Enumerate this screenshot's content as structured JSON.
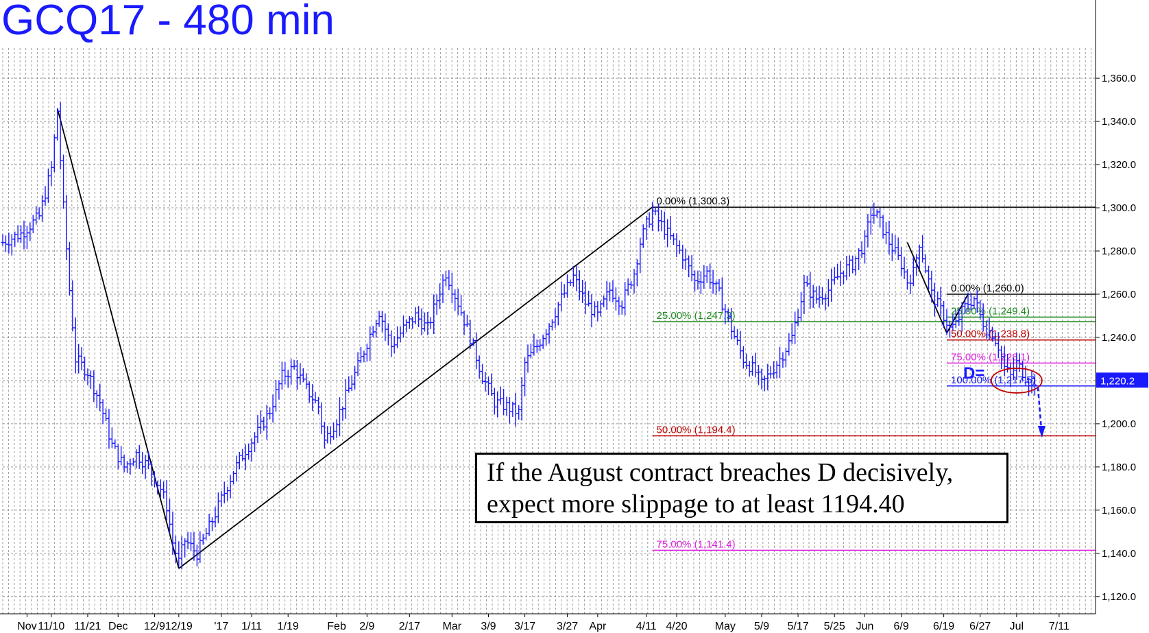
{
  "title": "GCQ17 - 480 min",
  "annotation": {
    "line1": "If the August contract breaches D decisively,",
    "line2": "expect more slippage to at least 1194.40"
  },
  "d_label": "D=",
  "colors": {
    "price": "#1a1aff",
    "title": "#1a1aff",
    "grid": "#9a9a9a",
    "trendline": "#000000",
    "fib_25": "#1f8a1f",
    "fib_50": "#c00000",
    "fib_75": "#e020e0",
    "fib_100": "#1a1aff",
    "circle": "#c00000",
    "last_price_bg": "#1a1aff"
  },
  "chart_data": {
    "type": "ohlc",
    "ylim": [
      1112,
      1374
    ],
    "y_ticks": [
      "1,120.0",
      "1,140.0",
      "1,160.0",
      "1,180.0",
      "1,200.0",
      "1,220.0",
      "1,240.0",
      "1,260.0",
      "1,280.0",
      "1,300.0",
      "1,320.0",
      "1,340.0",
      "1,360.0"
    ],
    "y_tick_values": [
      1120,
      1140,
      1160,
      1180,
      1200,
      1220,
      1240,
      1260,
      1280,
      1300,
      1320,
      1340,
      1360
    ],
    "x_ticks": [
      "Nov",
      "11/10",
      "11/21",
      "Dec",
      "12/9",
      "12/19",
      "'17",
      "1/11",
      "1/19",
      "Feb",
      "2/9",
      "2/17",
      "Mar",
      "3/9",
      "3/17",
      "3/27",
      "Apr",
      "4/11",
      "4/20",
      "May",
      "5/9",
      "5/17",
      "5/25",
      "Jun",
      "6/9",
      "6/19",
      "6/27",
      "Jul",
      "7/11"
    ],
    "x_tick_index": [
      4,
      8,
      14,
      19,
      25,
      29,
      36,
      41,
      47,
      55,
      60,
      67,
      74,
      80,
      86,
      93,
      98,
      106,
      111,
      119,
      125,
      131,
      137,
      142,
      148,
      155,
      161,
      167,
      174
    ],
    "x_range": [
      0,
      180
    ],
    "last_price": "1,220.2",
    "last_price_value": 1220.2,
    "price_path": [
      [
        0,
        1284
      ],
      [
        3,
        1288
      ],
      [
        6,
        1296
      ],
      [
        8,
        1318
      ],
      [
        9,
        1345
      ],
      [
        10,
        1300
      ],
      [
        11,
        1262
      ],
      [
        12,
        1230
      ],
      [
        14,
        1224
      ],
      [
        16,
        1210
      ],
      [
        18,
        1190
      ],
      [
        20,
        1180
      ],
      [
        22,
        1186
      ],
      [
        24,
        1180
      ],
      [
        26,
        1170
      ],
      [
        27,
        1162
      ],
      [
        28,
        1145
      ],
      [
        29,
        1136
      ],
      [
        30,
        1146
      ],
      [
        32,
        1140
      ],
      [
        34,
        1152
      ],
      [
        36,
        1165
      ],
      [
        38,
        1178
      ],
      [
        40,
        1188
      ],
      [
        42,
        1196
      ],
      [
        44,
        1206
      ],
      [
        46,
        1222
      ],
      [
        48,
        1226
      ],
      [
        50,
        1216
      ],
      [
        52,
        1208
      ],
      [
        53,
        1192
      ],
      [
        55,
        1202
      ],
      [
        57,
        1216
      ],
      [
        59,
        1230
      ],
      [
        61,
        1245
      ],
      [
        62,
        1252
      ],
      [
        64,
        1236
      ],
      [
        66,
        1244
      ],
      [
        68,
        1250
      ],
      [
        70,
        1244
      ],
      [
        72,
        1262
      ],
      [
        73,
        1270
      ],
      [
        75,
        1256
      ],
      [
        77,
        1240
      ],
      [
        79,
        1222
      ],
      [
        81,
        1210
      ],
      [
        83,
        1208
      ],
      [
        85,
        1205
      ],
      [
        86,
        1228
      ],
      [
        88,
        1236
      ],
      [
        90,
        1246
      ],
      [
        92,
        1258
      ],
      [
        94,
        1268
      ],
      [
        96,
        1256
      ],
      [
        98,
        1250
      ],
      [
        100,
        1262
      ],
      [
        102,
        1256
      ],
      [
        104,
        1270
      ],
      [
        105,
        1284
      ],
      [
        106,
        1292
      ],
      [
        107,
        1298
      ],
      [
        108,
        1294
      ],
      [
        110,
        1286
      ],
      [
        112,
        1278
      ],
      [
        114,
        1266
      ],
      [
        116,
        1270
      ],
      [
        118,
        1260
      ],
      [
        120,
        1244
      ],
      [
        122,
        1230
      ],
      [
        124,
        1224
      ],
      [
        125,
        1218
      ],
      [
        126,
        1222
      ],
      [
        128,
        1230
      ],
      [
        130,
        1240
      ],
      [
        131,
        1252
      ],
      [
        132,
        1264
      ],
      [
        134,
        1258
      ],
      [
        136,
        1262
      ],
      [
        138,
        1270
      ],
      [
        140,
        1274
      ],
      [
        142,
        1284
      ],
      [
        143,
        1298
      ],
      [
        144,
        1296
      ],
      [
        146,
        1284
      ],
      [
        148,
        1274
      ],
      [
        149,
        1266
      ],
      [
        150,
        1270
      ],
      [
        151,
        1284
      ],
      [
        152,
        1272
      ],
      [
        153,
        1260
      ],
      [
        155,
        1250
      ],
      [
        156,
        1244
      ],
      [
        157,
        1246
      ],
      [
        158,
        1252
      ],
      [
        159,
        1256
      ],
      [
        160,
        1258
      ],
      [
        161,
        1250
      ],
      [
        162,
        1244
      ],
      [
        163,
        1242
      ],
      [
        164,
        1236
      ],
      [
        165,
        1226
      ],
      [
        166,
        1222
      ],
      [
        167,
        1228
      ],
      [
        168,
        1224
      ],
      [
        169,
        1220
      ],
      [
        170,
        1220.2
      ]
    ],
    "trendlines": [
      [
        [
          9,
          1346
        ],
        [
          29,
          1133
        ]
      ],
      [
        [
          29,
          1133
        ],
        [
          107,
          1300.3
        ]
      ],
      [
        [
          149,
          1284
        ],
        [
          155.5,
          1242
        ]
      ],
      [
        [
          155.5,
          1242
        ],
        [
          159,
          1260
        ]
      ]
    ],
    "fib_levels": [
      {
        "label": "0.00% (1,300.3)",
        "value": 1300.3,
        "x_start": 107,
        "color": "#000000"
      },
      {
        "label": "25.00% (1,247.3)",
        "value": 1247.3,
        "x_start": 107,
        "color": "#1f8a1f"
      },
      {
        "label": "50.00% (1,194.4)",
        "value": 1194.4,
        "x_start": 107,
        "color": "#c00000"
      },
      {
        "label": "75.00% (1,141.4)",
        "value": 1141.4,
        "x_start": 107,
        "color": "#e020e0"
      },
      {
        "label": "0.00% (1,260.0)",
        "value": 1260.0,
        "x_start": 155.5,
        "color": "#000000"
      },
      {
        "label": "25.00% (1,249.4)",
        "value": 1249.4,
        "x_start": 155.5,
        "color": "#1f8a1f"
      },
      {
        "label": "50.00% (1,238.8)",
        "value": 1238.8,
        "x_start": 155.5,
        "color": "#c00000"
      },
      {
        "label": "75.00% (1,228.1)",
        "value": 1228.1,
        "x_start": 155.5,
        "color": "#e020e0"
      },
      {
        "label": "100.00% (1,217.5)",
        "value": 1217.5,
        "x_start": 155.5,
        "color": "#1a1aff"
      }
    ]
  }
}
